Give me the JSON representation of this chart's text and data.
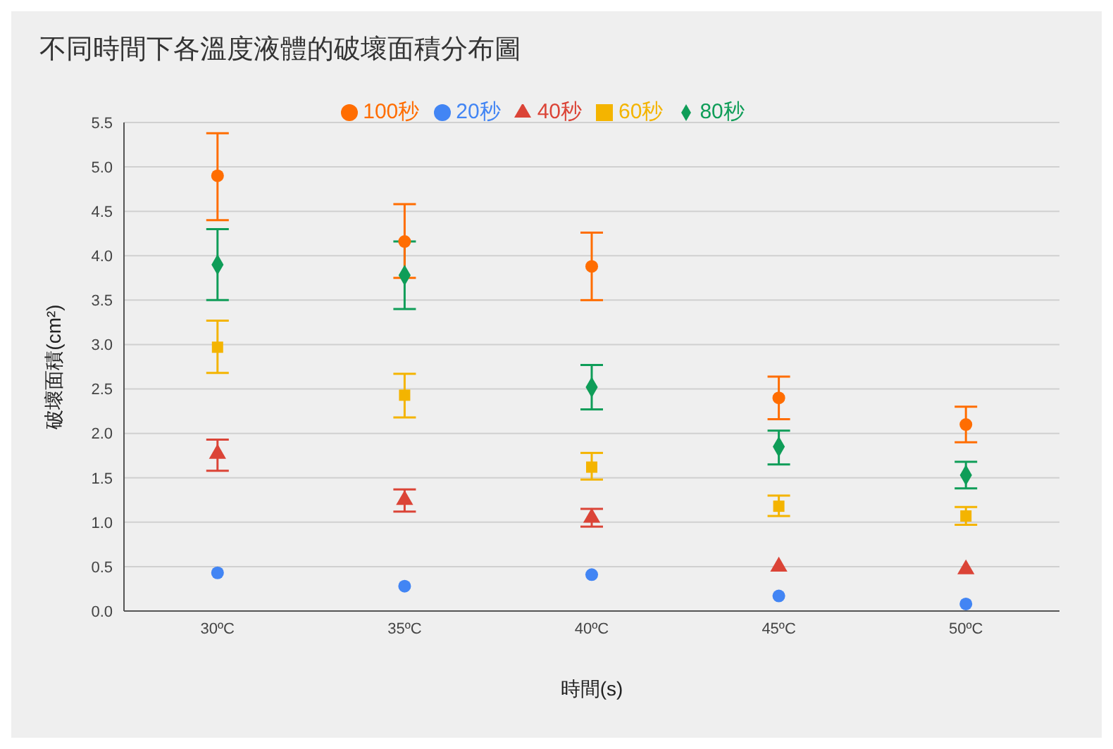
{
  "chart_data": {
    "type": "scatter",
    "title": "不同時間下各溫度液體的破壞面積分布圖",
    "xlabel": "時間(s)",
    "ylabel": "破壞面積(cm²)",
    "categories": [
      "30ºC",
      "35ºC",
      "40ºC",
      "45ºC",
      "50ºC"
    ],
    "series": [
      {
        "name": "20秒",
        "color": "#4285f4",
        "marker": "circle",
        "values": [
          0.43,
          0.28,
          0.41,
          0.17,
          0.08
        ]
      },
      {
        "name": "40秒",
        "color": "#db4437",
        "marker": "triangle",
        "values": [
          1.77,
          1.25,
          1.05,
          0.5,
          0.47
        ],
        "errors": [
          [
            1.58,
            1.93
          ],
          [
            1.12,
            1.37
          ],
          [
            0.95,
            1.15
          ],
          null,
          null
        ]
      },
      {
        "name": "60秒",
        "color": "#f4b400",
        "marker": "square",
        "values": [
          2.97,
          2.43,
          1.62,
          1.18,
          1.07
        ],
        "errors": [
          [
            2.68,
            3.27
          ],
          [
            2.18,
            2.67
          ],
          [
            1.48,
            1.78
          ],
          [
            1.07,
            1.3
          ],
          [
            0.97,
            1.17
          ]
        ]
      },
      {
        "name": "80秒",
        "color": "#0f9d58",
        "marker": "diamond",
        "values": [
          3.9,
          3.78,
          2.52,
          1.85,
          1.53
        ],
        "errors": [
          [
            3.5,
            4.3
          ],
          [
            3.4,
            4.16
          ],
          [
            2.27,
            2.77
          ],
          [
            1.65,
            2.03
          ],
          [
            1.38,
            1.68
          ]
        ]
      },
      {
        "name": "100秒",
        "color": "#ff6d01",
        "marker": "circle",
        "values": [
          4.9,
          4.16,
          3.88,
          2.4,
          2.1
        ],
        "errors": [
          [
            4.4,
            5.38
          ],
          [
            3.75,
            4.58
          ],
          [
            3.5,
            4.26
          ],
          [
            2.16,
            2.64
          ],
          [
            1.9,
            2.3
          ]
        ]
      }
    ],
    "ylim": [
      0,
      5.5
    ],
    "yticks": [
      {
        "value": 0,
        "label": "0.0"
      },
      0.5,
      {
        "value": 1,
        "label": "1.0"
      },
      1.5,
      {
        "value": 2,
        "label": "2.0"
      },
      2.5,
      {
        "value": 3,
        "label": "3.0"
      },
      3.5,
      {
        "value": 4,
        "label": "4.0"
      },
      4.5,
      {
        "value": 5,
        "label": "5.0"
      },
      5.5
    ],
    "grid": "y",
    "legend": "top"
  }
}
